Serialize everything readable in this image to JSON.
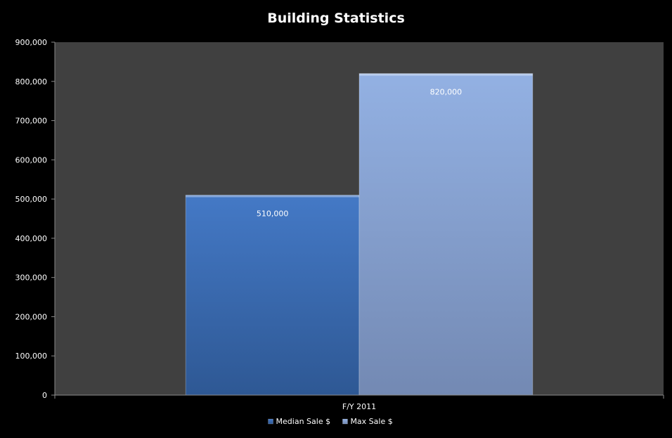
{
  "chart_data": {
    "type": "bar",
    "title": "Building Statistics",
    "xlabel": "",
    "ylabel": "",
    "categories": [
      "F/Y 2011"
    ],
    "series": [
      {
        "name": "Median Sale $",
        "values": [
          510000
        ],
        "color": "#3f72bf",
        "data_labels": [
          "510,000"
        ]
      },
      {
        "name": "Max Sale $",
        "values": [
          820000
        ],
        "color": "#8eacde",
        "data_labels": [
          "820,000"
        ]
      }
    ],
    "ylim": [
      0,
      900000
    ],
    "yticks": [
      0,
      100000,
      200000,
      300000,
      400000,
      500000,
      600000,
      700000,
      800000,
      900000
    ],
    "ytick_labels": [
      "0",
      "100,000",
      "200,000",
      "300,000",
      "400,000",
      "500,000",
      "600,000",
      "700,000",
      "800,000",
      "900,000"
    ],
    "grid": false,
    "legend": "bottom",
    "colors": {
      "background": "#000000",
      "plot_area": "#404040",
      "text": "#ffffff"
    }
  }
}
